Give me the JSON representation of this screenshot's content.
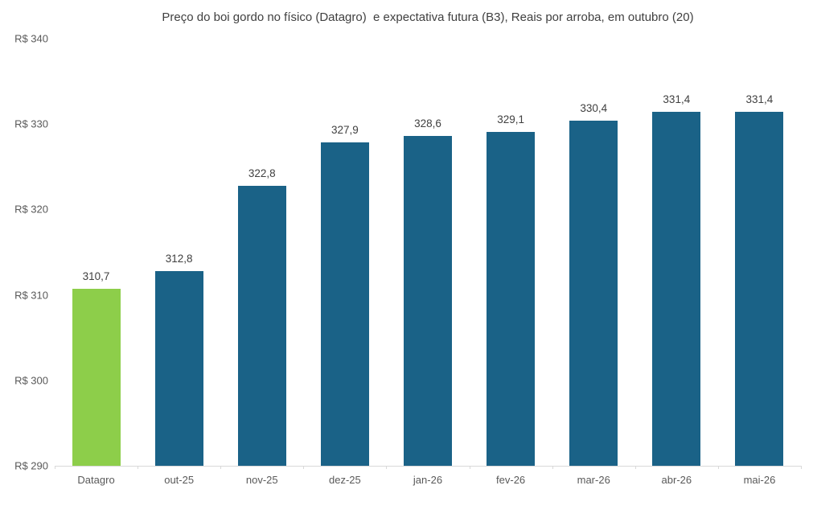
{
  "chart_data": {
    "type": "bar",
    "title": "Preço do boi gordo no físico (Datagro)  e expectativa futura (B3), Reais por arroba, em outubro (20)",
    "categories": [
      "Datagro",
      "out-25",
      "nov-25",
      "dez-25",
      "jan-26",
      "fev-26",
      "mar-26",
      "abr-26",
      "mai-26"
    ],
    "values": [
      310.7,
      312.8,
      322.8,
      327.9,
      328.6,
      329.1,
      330.4,
      331.4,
      331.4
    ],
    "value_labels": [
      "310,7",
      "312,8",
      "322,8",
      "327,9",
      "328,6",
      "329,1",
      "330,4",
      "331,4",
      "331,4"
    ],
    "bar_colors": [
      "#8dce4a",
      "#1a6287",
      "#1a6287",
      "#1a6287",
      "#1a6287",
      "#1a6287",
      "#1a6287",
      "#1a6287",
      "#1a6287"
    ],
    "series_colors": {
      "datagro_fisico": "#8dce4a",
      "b3_futuro": "#1a6287"
    },
    "yticks": [
      290,
      300,
      310,
      320,
      330,
      340
    ],
    "ytick_labels": [
      "R$ 290",
      "R$ 300",
      "R$ 310",
      "R$ 320",
      "R$ 330",
      "R$ 340"
    ],
    "ylim": [
      290,
      340
    ],
    "xlabel": "",
    "ylabel": "",
    "grid": false,
    "legend": null,
    "axis_line_color": "#d9d9d9",
    "tick_text_color": "#595959",
    "data_label_color": "#404040",
    "title_color": "#404040"
  }
}
